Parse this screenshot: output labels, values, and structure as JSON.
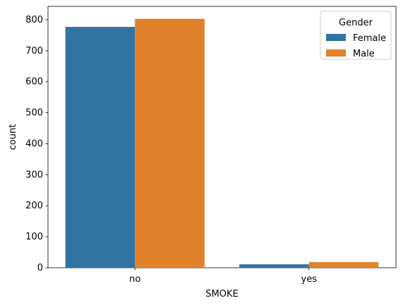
{
  "chart_data": {
    "type": "bar",
    "categories": [
      "no",
      "yes"
    ],
    "series": [
      {
        "name": "Female",
        "values": [
          777,
          11
        ],
        "color": "#3274a1"
      },
      {
        "name": "Male",
        "values": [
          803,
          18
        ],
        "color": "#e1812c"
      }
    ],
    "xlabel": "SMOKE",
    "ylabel": "count",
    "ylim": [
      0,
      843.15
    ],
    "yticks": [
      0,
      100,
      200,
      300,
      400,
      500,
      600,
      700,
      800
    ],
    "legend_title": "Gender",
    "legend_position": "top-right",
    "grid": false
  }
}
